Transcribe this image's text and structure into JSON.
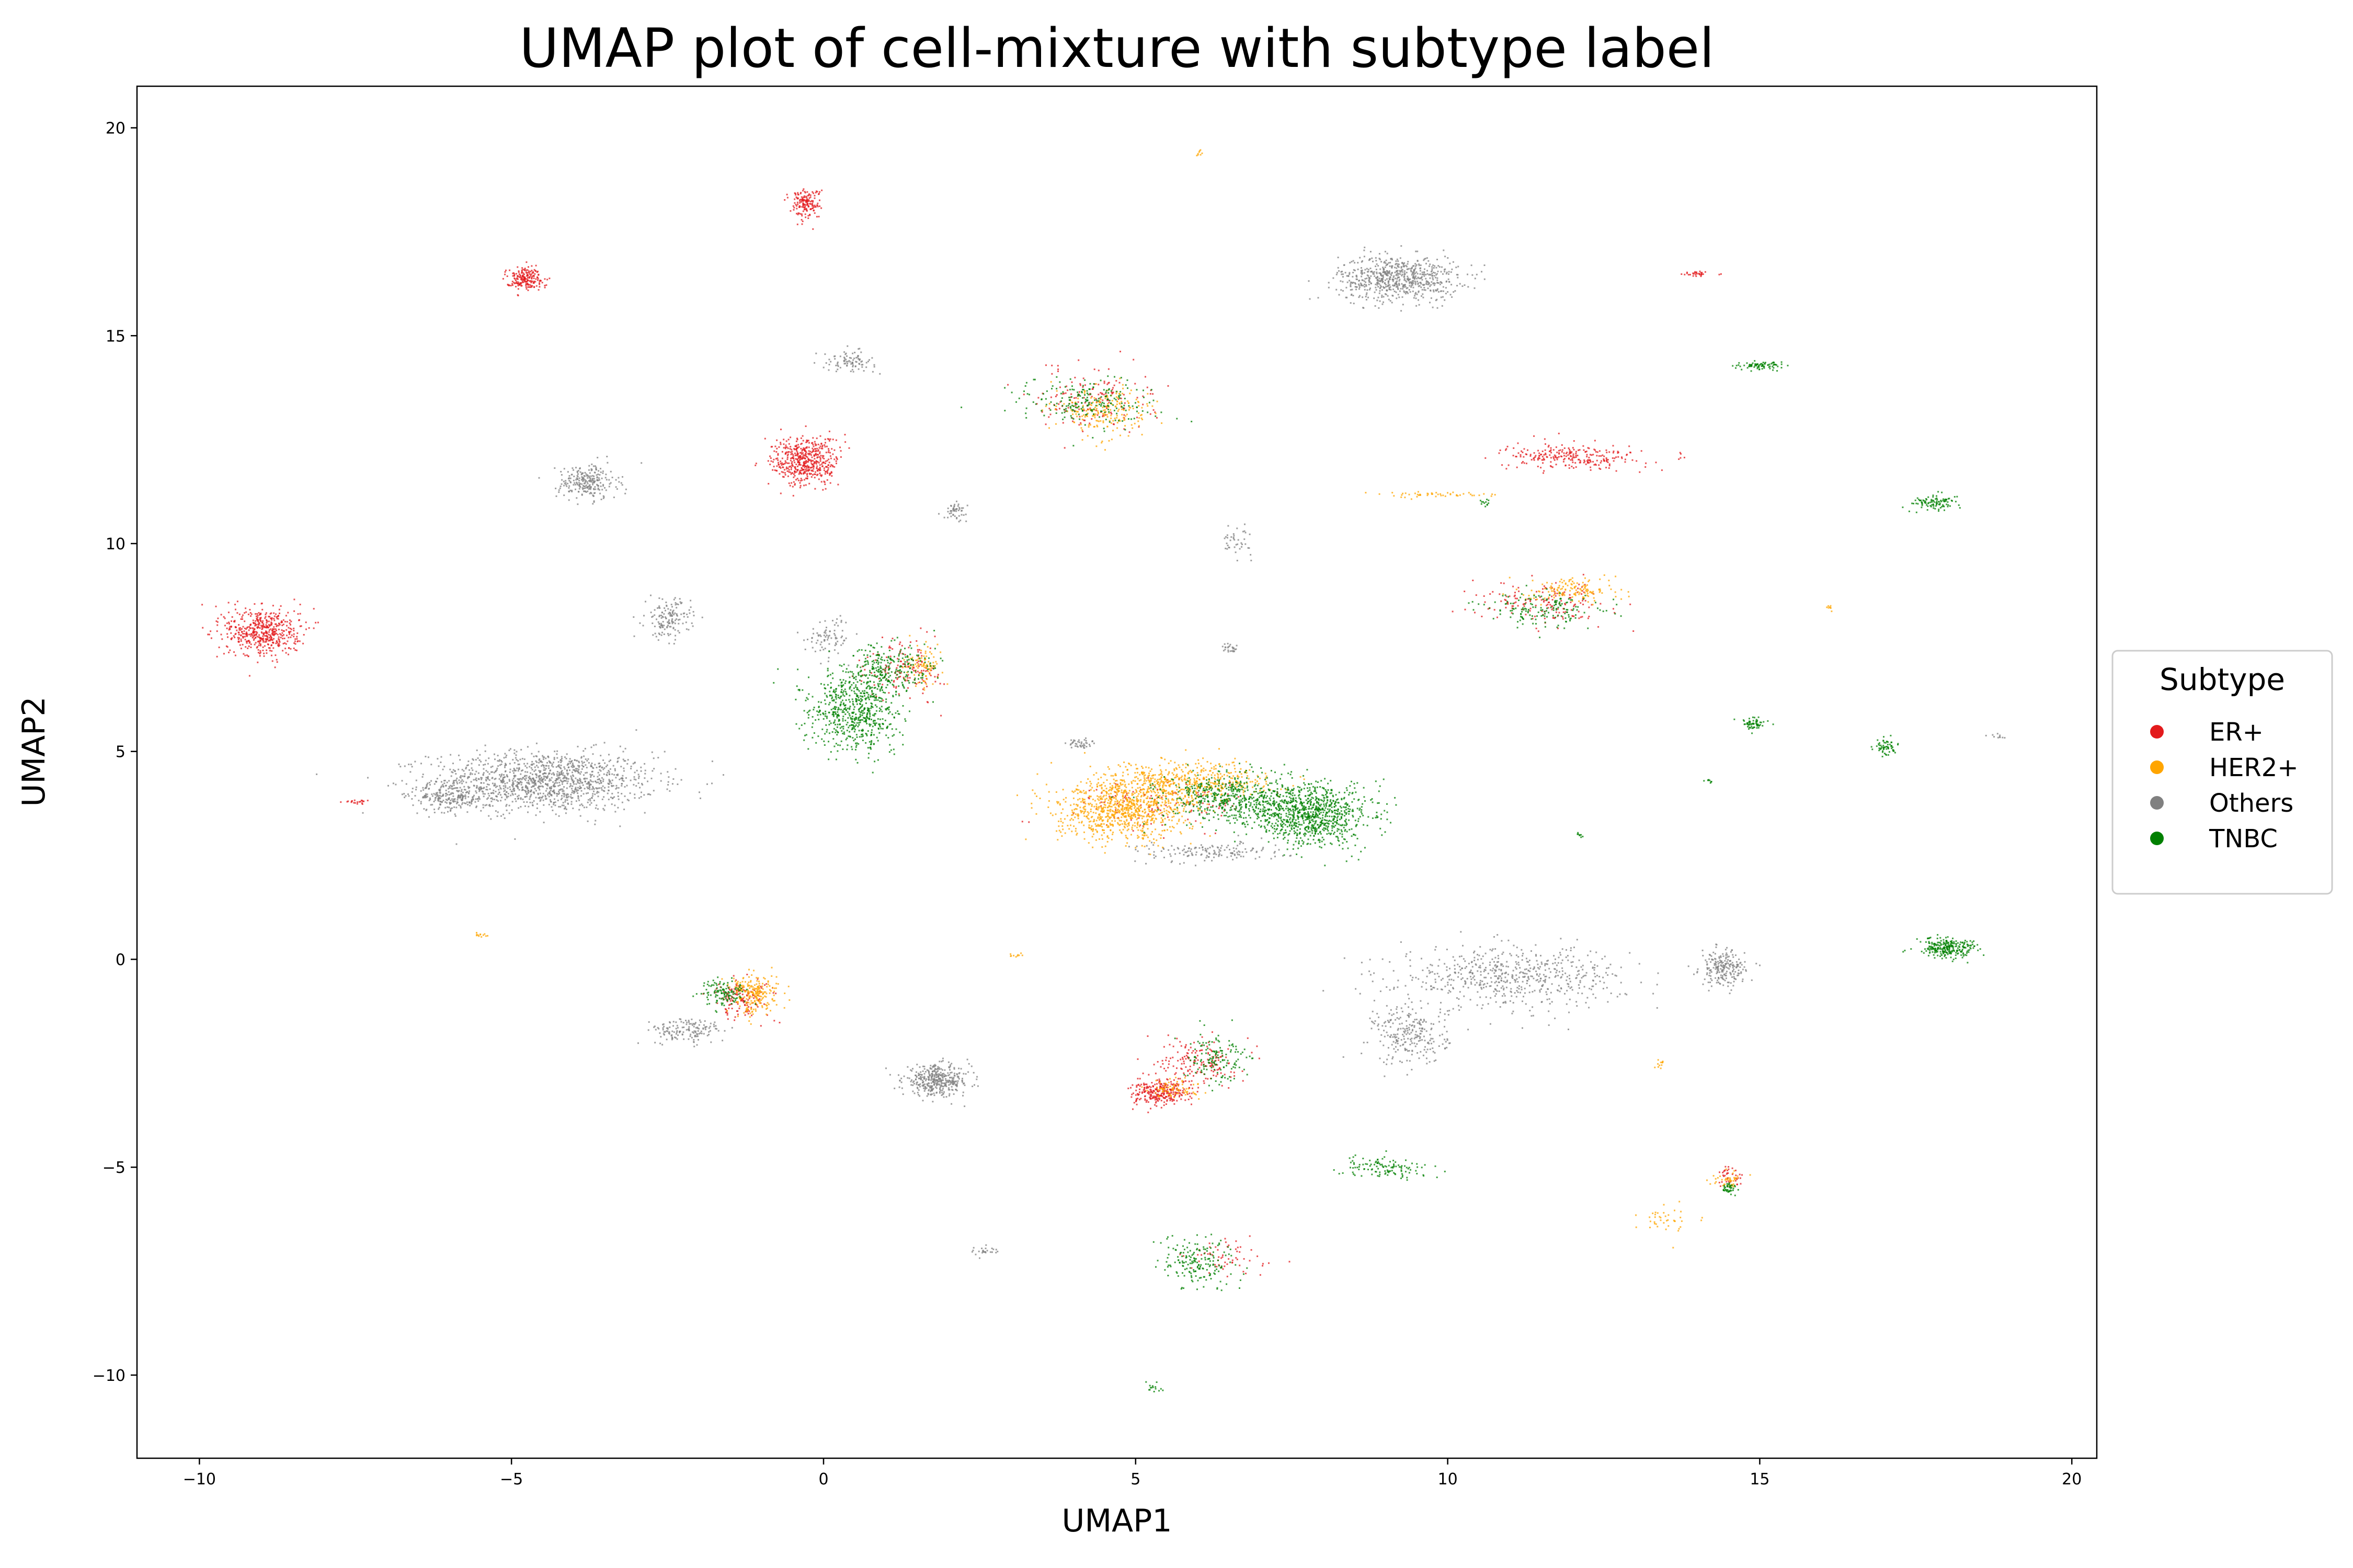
{
  "chart_data": {
    "type": "scatter",
    "title": "UMAP plot of cell-mixture with subtype label",
    "xlabel": "UMAP1",
    "ylabel": "UMAP2",
    "xlim": [
      -11,
      20.4
    ],
    "ylim": [
      -12,
      21
    ],
    "xticks": [
      -10,
      -5,
      0,
      5,
      10,
      15,
      20
    ],
    "yticks": [
      -10,
      -5,
      0,
      5,
      10,
      15,
      20
    ],
    "xtick_labels": [
      "−10",
      "−5",
      "0",
      "5",
      "10",
      "15",
      "20"
    ],
    "ytick_labels": [
      "−10",
      "−5",
      "0",
      "5",
      "10",
      "15",
      "20"
    ],
    "grid": false,
    "legend": {
      "title": "Subtype",
      "placement": "right",
      "entries": [
        {
          "label": "ER+",
          "color": "#e31a1c"
        },
        {
          "label": "HER2+",
          "color": "#ffa500"
        },
        {
          "label": "Others",
          "color": "#808080"
        },
        {
          "label": "TNBC",
          "color": "#008000"
        }
      ]
    },
    "series": [
      {
        "name": "ER+",
        "color": "#e31a1c",
        "clusters": [
          {
            "x": -9.0,
            "y": 7.9,
            "spread_x": 0.5,
            "spread_y": 0.5,
            "n": 520
          },
          {
            "x": -4.8,
            "y": 16.4,
            "spread_x": 0.25,
            "spread_y": 0.22,
            "n": 200
          },
          {
            "x": -0.3,
            "y": 18.2,
            "spread_x": 0.2,
            "spread_y": 0.3,
            "n": 160
          },
          {
            "x": -0.3,
            "y": 12.0,
            "spread_x": 0.45,
            "spread_y": 0.5,
            "n": 520
          },
          {
            "x": 12.0,
            "y": 12.1,
            "spread_x": 0.9,
            "spread_y": 0.25,
            "n": 260
          },
          {
            "x": 11.5,
            "y": 8.6,
            "spread_x": 0.9,
            "spread_y": 0.4,
            "n": 160
          },
          {
            "x": 5.4,
            "y": -3.2,
            "spread_x": 0.4,
            "spread_y": 0.25,
            "n": 280
          },
          {
            "x": 6.0,
            "y": -2.4,
            "spread_x": 0.5,
            "spread_y": 0.5,
            "n": 160
          },
          {
            "x": 4.3,
            "y": 13.5,
            "spread_x": 0.8,
            "spread_y": 0.6,
            "n": 160
          },
          {
            "x": 1.3,
            "y": 7.0,
            "spread_x": 0.5,
            "spread_y": 0.6,
            "n": 140
          },
          {
            "x": -1.3,
            "y": -0.9,
            "spread_x": 0.4,
            "spread_y": 0.4,
            "n": 140
          },
          {
            "x": 6.5,
            "y": -7.2,
            "spread_x": 0.6,
            "spread_y": 0.4,
            "n": 60
          },
          {
            "x": 14.5,
            "y": -5.2,
            "spread_x": 0.2,
            "spread_y": 0.2,
            "n": 40
          },
          {
            "x": 5.5,
            "y": 3.8,
            "spread_x": 1.2,
            "spread_y": 0.5,
            "n": 120
          },
          {
            "x": 14.0,
            "y": 16.5,
            "spread_x": 0.2,
            "spread_y": 0.05,
            "n": 30
          },
          {
            "x": -7.5,
            "y": 3.8,
            "spread_x": 0.15,
            "spread_y": 0.05,
            "n": 20
          }
        ]
      },
      {
        "name": "HER2+",
        "color": "#ffa500",
        "clusters": [
          {
            "x": 4.8,
            "y": 3.6,
            "spread_x": 0.9,
            "spread_y": 0.6,
            "n": 900
          },
          {
            "x": 5.8,
            "y": 4.3,
            "spread_x": 1.1,
            "spread_y": 0.4,
            "n": 500
          },
          {
            "x": 4.5,
            "y": 13.2,
            "spread_x": 0.6,
            "spread_y": 0.5,
            "n": 200
          },
          {
            "x": 12.0,
            "y": 8.9,
            "spread_x": 0.6,
            "spread_y": 0.25,
            "n": 140
          },
          {
            "x": -1.1,
            "y": -0.8,
            "spread_x": 0.3,
            "spread_y": 0.4,
            "n": 220
          },
          {
            "x": 1.6,
            "y": 7.1,
            "spread_x": 0.25,
            "spread_y": 0.4,
            "n": 90
          },
          {
            "x": 5.6,
            "y": -3.1,
            "spread_x": 0.35,
            "spread_y": 0.2,
            "n": 70
          },
          {
            "x": 9.8,
            "y": 11.2,
            "spread_x": 0.6,
            "spread_y": 0.05,
            "n": 50
          },
          {
            "x": 13.5,
            "y": -6.2,
            "spread_x": 0.4,
            "spread_y": 0.3,
            "n": 40
          },
          {
            "x": 14.5,
            "y": -5.3,
            "spread_x": 0.2,
            "spread_y": 0.2,
            "n": 40
          },
          {
            "x": 6.0,
            "y": 19.4,
            "spread_x": 0.05,
            "spread_y": 0.05,
            "n": 8
          },
          {
            "x": -5.5,
            "y": 0.6,
            "spread_x": 0.1,
            "spread_y": 0.05,
            "n": 12
          },
          {
            "x": 16.1,
            "y": 8.5,
            "spread_x": 0.05,
            "spread_y": 0.05,
            "n": 8
          },
          {
            "x": 3.1,
            "y": 0.1,
            "spread_x": 0.1,
            "spread_y": 0.05,
            "n": 10
          },
          {
            "x": 13.4,
            "y": -2.5,
            "spread_x": 0.08,
            "spread_y": 0.1,
            "n": 12
          }
        ]
      },
      {
        "name": "Others",
        "color": "#808080",
        "clusters": [
          {
            "x": -4.5,
            "y": 4.3,
            "spread_x": 1.5,
            "spread_y": 0.6,
            "n": 1300
          },
          {
            "x": -6.0,
            "y": 3.9,
            "spread_x": 0.5,
            "spread_y": 0.25,
            "n": 200
          },
          {
            "x": 9.2,
            "y": 16.4,
            "spread_x": 0.8,
            "spread_y": 0.45,
            "n": 700
          },
          {
            "x": -3.8,
            "y": 11.5,
            "spread_x": 0.4,
            "spread_y": 0.35,
            "n": 250
          },
          {
            "x": -2.5,
            "y": 8.2,
            "spread_x": 0.3,
            "spread_y": 0.4,
            "n": 150
          },
          {
            "x": 1.8,
            "y": -2.9,
            "spread_x": 0.45,
            "spread_y": 0.3,
            "n": 400
          },
          {
            "x": 11.0,
            "y": -0.4,
            "spread_x": 1.5,
            "spread_y": 0.6,
            "n": 600
          },
          {
            "x": 9.4,
            "y": -1.8,
            "spread_x": 0.5,
            "spread_y": 0.6,
            "n": 250
          },
          {
            "x": 14.4,
            "y": -0.2,
            "spread_x": 0.3,
            "spread_y": 0.35,
            "n": 220
          },
          {
            "x": -2.2,
            "y": -1.7,
            "spread_x": 0.5,
            "spread_y": 0.25,
            "n": 150
          },
          {
            "x": 0.4,
            "y": 14.4,
            "spread_x": 0.35,
            "spread_y": 0.2,
            "n": 90
          },
          {
            "x": 0.1,
            "y": 7.8,
            "spread_x": 0.3,
            "spread_y": 0.4,
            "n": 80
          },
          {
            "x": 2.1,
            "y": 10.8,
            "spread_x": 0.15,
            "spread_y": 0.15,
            "n": 50
          },
          {
            "x": 6.6,
            "y": 10.1,
            "spread_x": 0.2,
            "spread_y": 0.3,
            "n": 40
          },
          {
            "x": 6.5,
            "y": 7.5,
            "spread_x": 0.15,
            "spread_y": 0.1,
            "n": 25
          },
          {
            "x": 4.1,
            "y": 5.2,
            "spread_x": 0.15,
            "spread_y": 0.1,
            "n": 40
          },
          {
            "x": 6.2,
            "y": 2.6,
            "spread_x": 1.0,
            "spread_y": 0.2,
            "n": 150
          },
          {
            "x": 2.5,
            "y": -7.0,
            "spread_x": 0.2,
            "spread_y": 0.1,
            "n": 25
          },
          {
            "x": 18.8,
            "y": 5.4,
            "spread_x": 0.1,
            "spread_y": 0.05,
            "n": 10
          }
        ]
      },
      {
        "name": "TNBC",
        "color": "#008000",
        "clusters": [
          {
            "x": 7.8,
            "y": 3.5,
            "spread_x": 0.8,
            "spread_y": 0.6,
            "n": 900
          },
          {
            "x": 6.5,
            "y": 3.9,
            "spread_x": 0.9,
            "spread_y": 0.5,
            "n": 500
          },
          {
            "x": 0.5,
            "y": 6.0,
            "spread_x": 0.6,
            "spread_y": 0.8,
            "n": 650
          },
          {
            "x": 1.0,
            "y": 7.0,
            "spread_x": 0.6,
            "spread_y": 0.5,
            "n": 250
          },
          {
            "x": 4.2,
            "y": 13.4,
            "spread_x": 0.9,
            "spread_y": 0.5,
            "n": 220
          },
          {
            "x": 11.6,
            "y": 8.4,
            "spread_x": 0.8,
            "spread_y": 0.35,
            "n": 160
          },
          {
            "x": 17.8,
            "y": 11.0,
            "spread_x": 0.35,
            "spread_y": 0.15,
            "n": 100
          },
          {
            "x": 15.0,
            "y": 14.3,
            "spread_x": 0.3,
            "spread_y": 0.08,
            "n": 80
          },
          {
            "x": 14.9,
            "y": 5.7,
            "spread_x": 0.15,
            "spread_y": 0.15,
            "n": 60
          },
          {
            "x": 17.0,
            "y": 5.1,
            "spread_x": 0.15,
            "spread_y": 0.2,
            "n": 60
          },
          {
            "x": 18.0,
            "y": 0.3,
            "spread_x": 0.4,
            "spread_y": 0.2,
            "n": 260
          },
          {
            "x": 9.0,
            "y": -5.0,
            "spread_x": 0.6,
            "spread_y": 0.2,
            "n": 120
          },
          {
            "x": 6.0,
            "y": -7.3,
            "spread_x": 0.5,
            "spread_y": 0.5,
            "n": 180
          },
          {
            "x": -1.6,
            "y": -0.8,
            "spread_x": 0.3,
            "spread_y": 0.3,
            "n": 120
          },
          {
            "x": 6.3,
            "y": -2.3,
            "spread_x": 0.4,
            "spread_y": 0.5,
            "n": 140
          },
          {
            "x": 14.5,
            "y": -5.5,
            "spread_x": 0.15,
            "spread_y": 0.1,
            "n": 40
          },
          {
            "x": 5.3,
            "y": -10.3,
            "spread_x": 0.15,
            "spread_y": 0.1,
            "n": 15
          },
          {
            "x": 12.1,
            "y": 3.0,
            "spread_x": 0.05,
            "spread_y": 0.05,
            "n": 8
          },
          {
            "x": 14.2,
            "y": 4.3,
            "spread_x": 0.05,
            "spread_y": 0.05,
            "n": 8
          },
          {
            "x": 10.6,
            "y": 11.0,
            "spread_x": 0.1,
            "spread_y": 0.1,
            "n": 12
          }
        ]
      }
    ]
  }
}
